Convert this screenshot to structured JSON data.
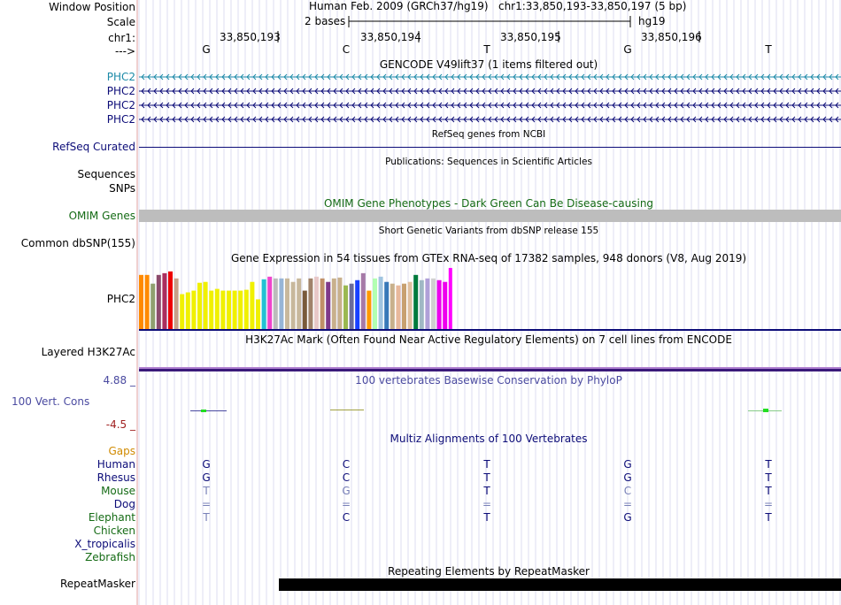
{
  "header": {
    "window_position_label": "Window Position",
    "scale_label": "Scale",
    "chr_label": "chr1:",
    "strand_label": "--->",
    "assembly": "Human Feb. 2009 (GRCh37/hg19)",
    "position": "chr1:33,850,193-33,850,197 (5 bp)",
    "scale_text": "2 bases",
    "db": "hg19",
    "coords": [
      "33,850,193",
      "33,850,194",
      "33,850,195",
      "33,850,196"
    ],
    "bases": [
      "G",
      "C",
      "T",
      "G",
      "T"
    ]
  },
  "tracks": {
    "gencode": {
      "title": "GENCODE V49lift37 (1 items filtered out)",
      "items": [
        "PHC2",
        "PHC2",
        "PHC2",
        "PHC2"
      ],
      "color_first": "#1c8aa8",
      "color": "#0c0c78"
    },
    "refseq": {
      "title": "RefSeq genes from NCBI",
      "label": "RefSeq Curated"
    },
    "publications": {
      "title": "Publications: Sequences in Scientific Articles",
      "label_sequences": "Sequences",
      "label_snps": "SNPs"
    },
    "omim": {
      "title": "OMIM Gene Phenotypes - Dark Green Can Be Disease-causing",
      "label": "OMIM Genes"
    },
    "dbsnp": {
      "title": "Short Genetic Variants from dbSNP release 155",
      "label": "Common dbSNP(155)"
    },
    "gtex": {
      "title": "Gene Expression in 54 tissues from GTEx RNA-seq of 17382 samples, 948 donors (V8, Aug 2019)",
      "label": "PHC2"
    },
    "h3k27ac": {
      "title": "H3K27Ac Mark (Often Found Near Active Regulatory Elements) on 7 cell lines from ENCODE",
      "label": "Layered H3K27Ac"
    },
    "phylop": {
      "title": "100 vertebrates Basewise Conservation by PhyloP",
      "label": "100 Vert. Cons",
      "max": "4.88 _",
      "min": "-4.5 _"
    },
    "multiz": {
      "title": "Multiz Alignments of 100 Vertebrates",
      "species": [
        {
          "name": "Gaps",
          "color": "#d08a00",
          "bases": [
            "",
            "",
            "",
            "",
            ""
          ]
        },
        {
          "name": "Human",
          "color": "#0c0c78",
          "bases": [
            "G",
            "C",
            "T",
            "G",
            "T"
          ]
        },
        {
          "name": "Rhesus",
          "color": "#0c0c78",
          "bases": [
            "G",
            "C",
            "T",
            "G",
            "T"
          ]
        },
        {
          "name": "Mouse",
          "color": "#156b15",
          "bases": [
            "T",
            "G",
            "T",
            "C",
            "T"
          ]
        },
        {
          "name": "Dog",
          "color": "#0c0c78",
          "bases": [
            "=",
            "=",
            "=",
            "=",
            "="
          ]
        },
        {
          "name": "Elephant",
          "color": "#156b15",
          "bases": [
            "T",
            "C",
            "T",
            "G",
            "T"
          ]
        },
        {
          "name": "Chicken",
          "color": "#156b15",
          "bases": [
            "",
            "",
            "",
            "",
            ""
          ]
        },
        {
          "name": "X_tropicalis",
          "color": "#0c0c78",
          "bases": [
            "",
            "",
            "",
            "",
            ""
          ]
        },
        {
          "name": "Zebrafish",
          "color": "#156b15",
          "bases": [
            "",
            "",
            "",
            "",
            ""
          ]
        }
      ]
    },
    "repeatmasker": {
      "title": "Repeating Elements by RepeatMasker",
      "label": "RepeatMasker"
    }
  },
  "chart_data": {
    "type": "bar",
    "title": "Gene Expression in 54 tissues from GTEx RNA-seq of 17382 samples, 948 donors (V8, Aug 2019)",
    "ylim": [
      0,
      75
    ],
    "values": [
      62,
      62,
      52,
      62,
      64,
      66,
      58,
      40,
      42,
      44,
      53,
      54,
      44,
      46,
      44,
      44,
      44,
      44,
      45,
      54,
      34,
      57,
      60,
      58,
      58,
      58,
      54,
      58,
      44,
      58,
      60,
      58,
      54,
      58,
      59,
      50,
      52,
      56,
      64,
      44,
      58,
      60,
      54,
      52,
      50,
      52,
      54,
      62,
      56,
      58,
      58,
      56,
      54,
      70
    ],
    "colors": [
      "#ff8a00",
      "#ff8a00",
      "#90a070",
      "#8c4a6c",
      "#ab2e5e",
      "#ee0000",
      "#c7a088",
      "#f0f000",
      "#f0f000",
      "#f0f000",
      "#f0f000",
      "#f0f000",
      "#f0f000",
      "#f0f000",
      "#f0f000",
      "#f0f000",
      "#f0f000",
      "#f0f000",
      "#f0f000",
      "#f0f000",
      "#f0f000",
      "#22c2d4",
      "#ee44cc",
      "#bbbbbb",
      "#97b5d6",
      "#c8b89c",
      "#c8b89c",
      "#c8b89c",
      "#7a5a3a",
      "#a0826a",
      "#e8c8c8",
      "#c09068",
      "#7f3a8a",
      "#c8b08c",
      "#c8b08c",
      "#9ab850",
      "#6b6b9b",
      "#1840ff",
      "#a67aa7",
      "#ff9800",
      "#b2ffb2",
      "#a0c4e0",
      "#3878b8",
      "#c8b08c",
      "#e8b89c",
      "#c8a070",
      "#e0c0a0",
      "#007a3c",
      "#a0b8c4",
      "#b0a0d8",
      "#d0d0d0",
      "#ee00ee",
      "#ee00ee",
      "#ff00ff"
    ]
  }
}
